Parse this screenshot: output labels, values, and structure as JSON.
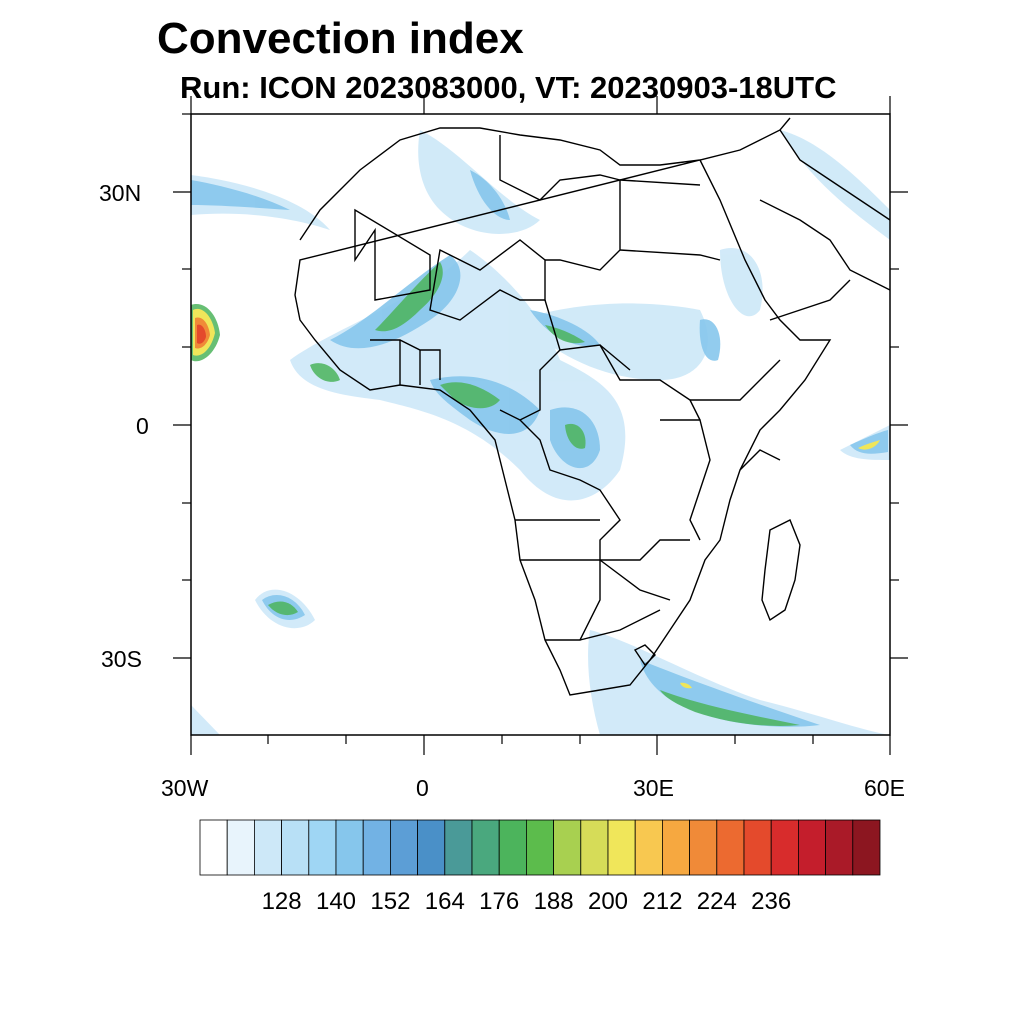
{
  "title": "Convection index",
  "subtitle": "Run: ICON 2023083000,  VT: 20230903-18UTC",
  "axes": {
    "lat_labels": [
      "30N",
      "0",
      "30S"
    ],
    "lon_labels": [
      "30W",
      "0",
      "30E",
      "60E"
    ]
  },
  "colorbar": {
    "labels": [
      "128",
      "140",
      "152",
      "164",
      "176",
      "188",
      "200",
      "212",
      "224",
      "236"
    ],
    "colors": [
      "#ffffff",
      "#e8f4fc",
      "#cde8f8",
      "#b8e0f6",
      "#9fd6f4",
      "#86c6ec",
      "#72b2e4",
      "#5c9ed6",
      "#4a90c8",
      "#4a9a98",
      "#4aa87e",
      "#4cb45c",
      "#5cbc4c",
      "#a8d050",
      "#d6dc58",
      "#f0e65a",
      "#f8c850",
      "#f6a840",
      "#f08a38",
      "#ec6a30",
      "#e44a2c",
      "#d82c2c",
      "#c41e2c",
      "#aa1a28",
      "#8c1620"
    ]
  }
}
